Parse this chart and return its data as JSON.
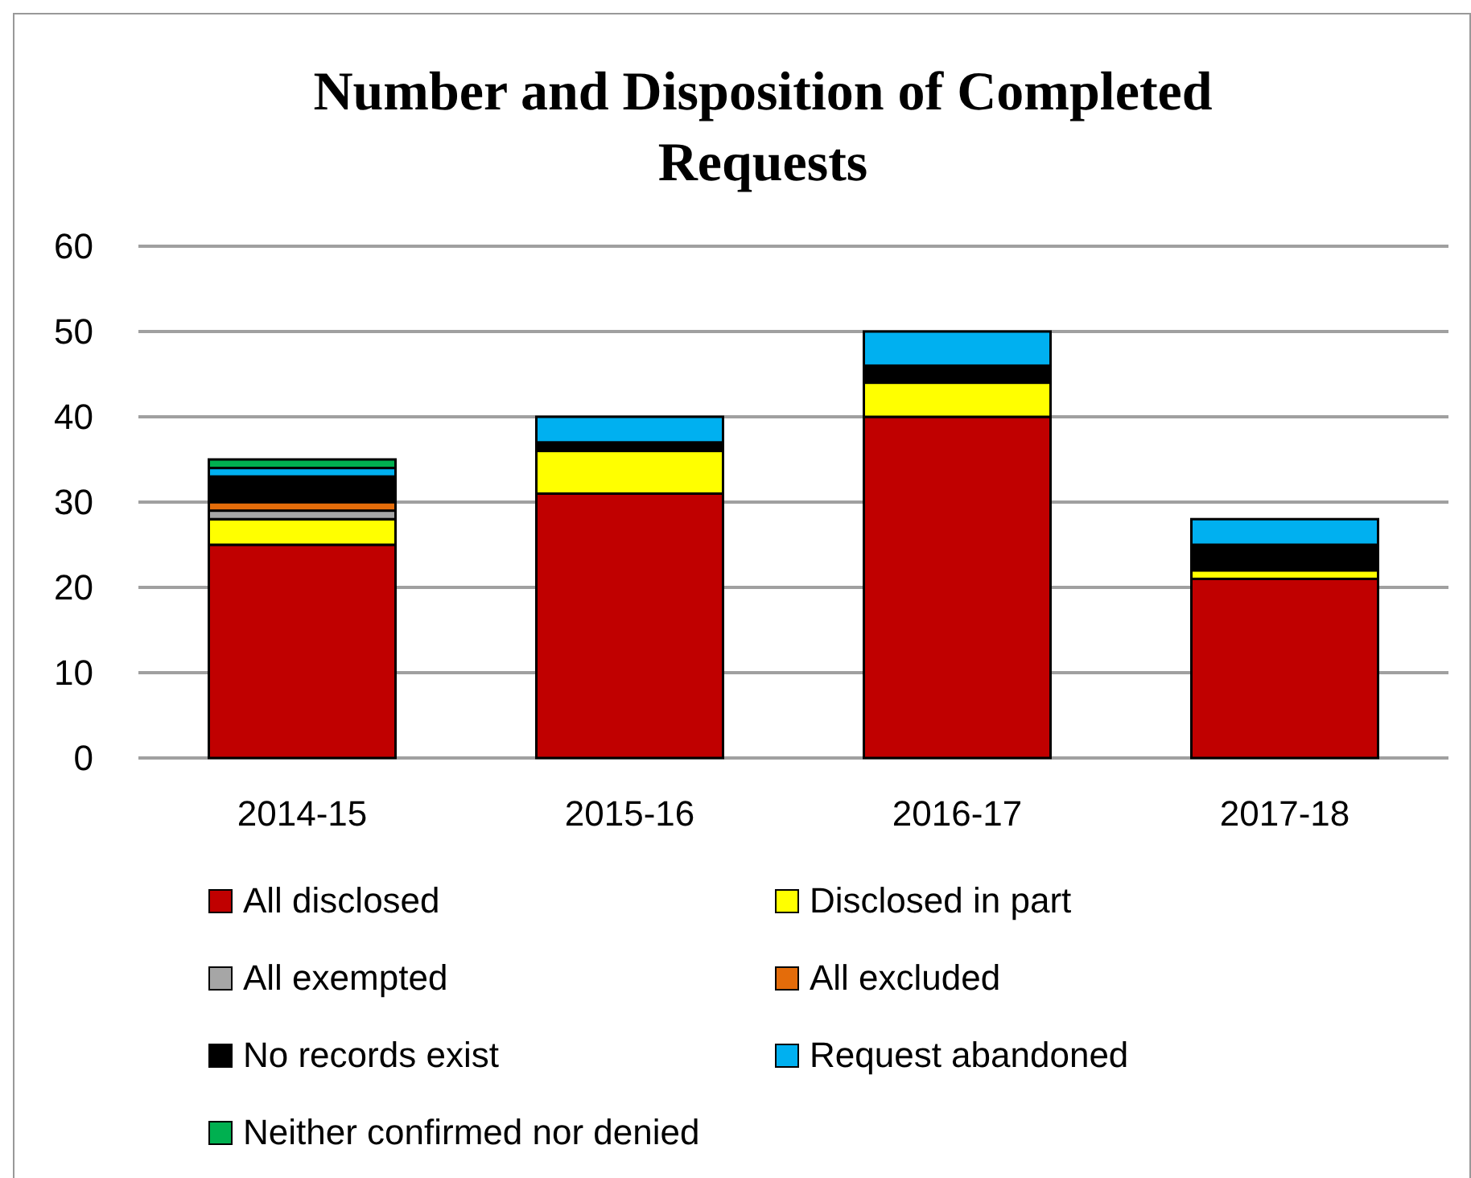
{
  "chart_data": {
    "type": "bar",
    "title": "Number and Disposition of Completed Requests",
    "categories": [
      "2014-15",
      "2015-16",
      "2016-17",
      "2017-18"
    ],
    "stacked": true,
    "series": [
      {
        "name": "All disclosed",
        "color": "#c00000",
        "values": [
          25,
          31,
          40,
          21
        ]
      },
      {
        "name": "Disclosed in part",
        "color": "#ffff00",
        "values": [
          3,
          5,
          4,
          1
        ]
      },
      {
        "name": "All exempted",
        "color": "#a6a6a6",
        "values": [
          1,
          0,
          0,
          0
        ]
      },
      {
        "name": "All excluded",
        "color": "#e46c0a",
        "values": [
          1,
          0,
          0,
          0
        ]
      },
      {
        "name": "No records exist",
        "color": "#000000",
        "values": [
          3,
          1,
          2,
          3
        ]
      },
      {
        "name": "Request abandoned",
        "color": "#00b0f0",
        "values": [
          1,
          3,
          4,
          3
        ]
      },
      {
        "name": "Neither confirmed nor denied",
        "color": "#00b050",
        "values": [
          1,
          0,
          0,
          0
        ]
      }
    ],
    "ylim": [
      0,
      60
    ],
    "yticks": [
      0,
      10,
      20,
      30,
      40,
      50,
      60
    ],
    "grid": "y",
    "legend": "bottom"
  }
}
